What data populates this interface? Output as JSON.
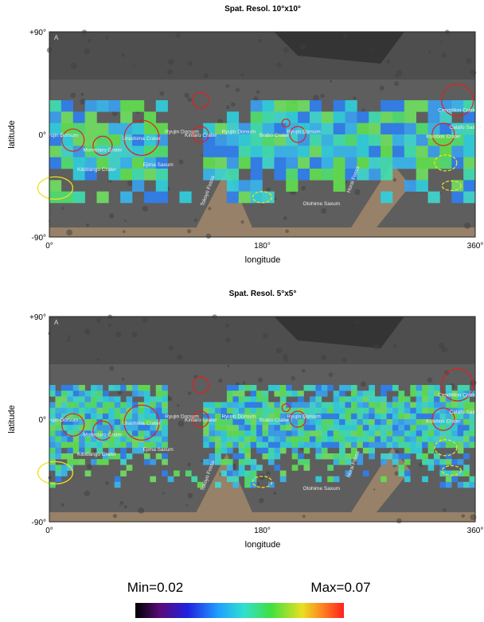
{
  "panels": [
    {
      "title": "Spat. Resol. 10°x10°",
      "corner_label": "A",
      "y_axis": {
        "label": "latitude",
        "ticks": [
          "+90°",
          "0°",
          "-90°"
        ]
      },
      "x_axis": {
        "label": "longitude",
        "ticks": [
          "0°",
          "180°",
          "360°"
        ]
      },
      "features": [
        "Ryujin Dorsum",
        "Momotaro Crater",
        "Kibidango Crater",
        "Urashima Crater",
        "Ejima Saxum",
        "Ryujin Dorsum",
        "Tokoyo Fossa",
        "Kintaro Crater",
        "Ryujin Dorsum",
        "Brabo Crater",
        "Ryujin Dorsum",
        "Otohime Saxum",
        "Horai Fossa",
        "Kolobok Crater",
        "Cendrillon Crater",
        "Catafo Saxum"
      ]
    },
    {
      "title": "Spat. Resol. 5°x5°",
      "corner_label": "A",
      "y_axis": {
        "label": "latitude",
        "ticks": [
          "+90°",
          "0°",
          "-90°"
        ]
      },
      "x_axis": {
        "label": "longitude",
        "ticks": [
          "0°",
          "180°",
          "360°"
        ]
      },
      "features": [
        "Ryujin Dorsum",
        "Momotaro Crater",
        "Kibidango Crater",
        "Urashima Crater",
        "Ejima Saxum",
        "Ryujin Dorsum",
        "Tokoyo Fossa",
        "Kintaro Crater",
        "Ryujin Dorsum",
        "Brabo Crater",
        "Ryujin Dorsum",
        "Otohime Saxum",
        "Horai Fossa",
        "Kolobok Crater",
        "Cendrillon Crater",
        "Catafo Saxum"
      ]
    }
  ],
  "colorbar": {
    "min_label": "Min=0.02",
    "max_label": "Max=0.07"
  }
}
